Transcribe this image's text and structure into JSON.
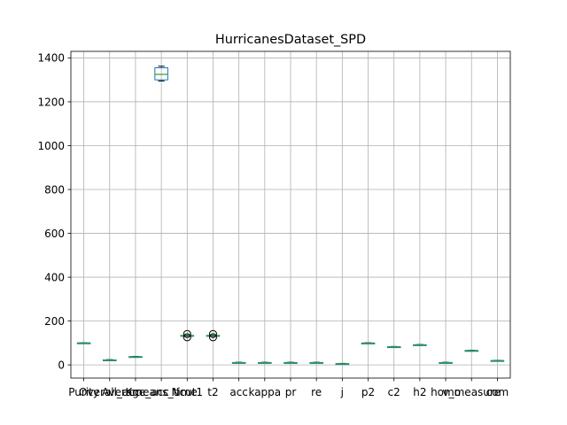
{
  "chart_data": {
    "type": "boxplot",
    "title": "HurricanesDataset_SPD",
    "xlabel": "",
    "ylabel": "",
    "ylim": [
      -60,
      1430
    ],
    "yticks": [
      0,
      200,
      400,
      600,
      800,
      1000,
      1200,
      1400
    ],
    "grid": true,
    "legend": "none",
    "colors": {
      "box": "#1f77b4",
      "whisker": "#1f77b4",
      "median": "#2ca02c",
      "flier": "#000000"
    },
    "categories": [
      "Purity",
      "Overall_acc",
      "Average_acc",
      "Kmeans_time",
      "Ncut",
      "t2",
      "acc",
      "kappa",
      "pr",
      "re",
      "j",
      "p2",
      "c2",
      "h2",
      "homo",
      "v_measure",
      "com"
    ],
    "tick_labels": [
      "Purity",
      "Overall_acc",
      "Average_acc",
      "Kmeans_time",
      "Ncut1",
      "t2",
      "acc",
      "kappa",
      "pr",
      "re",
      "j",
      "p2",
      "c2",
      "h2",
      "homo",
      "v_measure",
      "com"
    ],
    "boxes": [
      {
        "min": 99,
        "q1": 99.5,
        "median": 100,
        "q3": 100.5,
        "max": 101,
        "fliers": []
      },
      {
        "min": 21,
        "q1": 22,
        "median": 22.5,
        "q3": 23,
        "max": 24,
        "fliers": []
      },
      {
        "min": 35,
        "q1": 36,
        "median": 37,
        "q3": 38,
        "max": 39,
        "fliers": []
      },
      {
        "min": 1295,
        "q1": 1300,
        "median": 1325,
        "q3": 1355,
        "max": 1362,
        "fliers": []
      },
      {
        "min": 131,
        "q1": 132.5,
        "median": 133.5,
        "q3": 134.5,
        "max": 136,
        "fliers": [
          126,
          141
        ]
      },
      {
        "min": 131,
        "q1": 132.5,
        "median": 133.5,
        "q3": 134.5,
        "max": 136,
        "fliers": [
          126,
          141
        ]
      },
      {
        "min": 9,
        "q1": 10,
        "median": 10.5,
        "q3": 11,
        "max": 12,
        "fliers": []
      },
      {
        "min": 9,
        "q1": 10,
        "median": 10.5,
        "q3": 11,
        "max": 12,
        "fliers": []
      },
      {
        "min": 9,
        "q1": 10,
        "median": 10.5,
        "q3": 11,
        "max": 12,
        "fliers": []
      },
      {
        "min": 9,
        "q1": 10,
        "median": 10.5,
        "q3": 11,
        "max": 12,
        "fliers": []
      },
      {
        "min": 4,
        "q1": 5,
        "median": 5.5,
        "q3": 6,
        "max": 7,
        "fliers": []
      },
      {
        "min": 98,
        "q1": 99,
        "median": 99.5,
        "q3": 100,
        "max": 101,
        "fliers": []
      },
      {
        "min": 81,
        "q1": 82,
        "median": 82.5,
        "q3": 83,
        "max": 84,
        "fliers": []
      },
      {
        "min": 90,
        "q1": 91,
        "median": 91.5,
        "q3": 92,
        "max": 93,
        "fliers": []
      },
      {
        "min": 9,
        "q1": 10,
        "median": 10.5,
        "q3": 11,
        "max": 12,
        "fliers": []
      },
      {
        "min": 64,
        "q1": 65,
        "median": 65.5,
        "q3": 66,
        "max": 67,
        "fliers": []
      },
      {
        "min": 18,
        "q1": 19,
        "median": 19.5,
        "q3": 20,
        "max": 21,
        "fliers": []
      }
    ]
  }
}
